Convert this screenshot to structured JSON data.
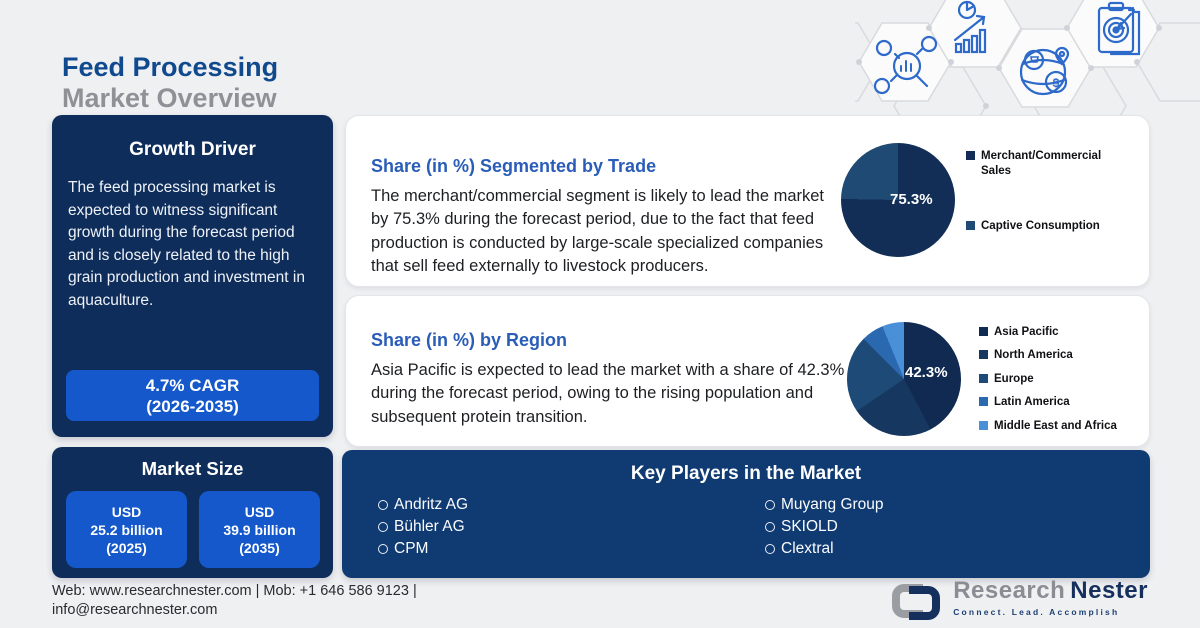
{
  "header": {
    "title_line1": "Feed Processing",
    "title_line2": "Market Overview"
  },
  "growth_driver": {
    "title": "Growth Driver",
    "body": "The feed processing market is expected to witness significant growth during the forecast period and is closely related to the high grain production and investment in aquaculture.",
    "cagr_line1": "4.7% CAGR",
    "cagr_line2": "(2026-2035)"
  },
  "trade_panel": {
    "title": "Share (in %) Segmented by Trade",
    "body": "The merchant/commercial segment is likely to lead the market by 75.3% during the forecast period, due to the fact that feed production is conducted by large-scale specialized companies that sell feed externally to livestock producers."
  },
  "region_panel": {
    "title": "Share (in %) by Region",
    "body": "Asia Pacific is expected to lead the market with a share of 42.3% during the forecast period, owing to the rising population and subsequent protein transition."
  },
  "market_size": {
    "title": "Market Size",
    "value1": {
      "line1": "USD",
      "line2": "25.2 billion",
      "line3": "(2025)"
    },
    "value2": {
      "line1": "USD",
      "line2": "39.9 billion",
      "line3": "(2035)"
    }
  },
  "key_players": {
    "title": "Key Players in the Market",
    "column1": [
      "Andritz AG",
      "Bühler AG",
      "CPM"
    ],
    "column2": [
      "Muyang Group",
      "SKIOLD",
      "Clextral"
    ]
  },
  "footer": {
    "contact_line1": "Web: www.researchnester.com | Mob: +1 646 586 9123 |",
    "contact_line2": "info@researchnester.com",
    "brand_part1": "Research",
    "brand_part2": "Nester",
    "tagline": "Connect. Lead. Accomplish"
  },
  "decor": {
    "dollar_glyph": "$",
    "icon_names": [
      "market-research-icon",
      "growth-chart-icon",
      "global-market-icon",
      "target-plan-icon"
    ]
  },
  "colors": {
    "background": "#eff0f2",
    "navy_card": "#0e2d5a",
    "key_players_card": "#0f3a72",
    "accent_blue": "#1458cc",
    "heading_blue": "#2a5db8",
    "title_navy": "#11498f",
    "title_gray": "#8e9196"
  },
  "chart_data": [
    {
      "type": "pie",
      "title": "Share (in %) Segmented by Trade",
      "labels": [
        "Merchant/Commercial Sales",
        "Captive Consumption"
      ],
      "values": [
        75.3,
        24.7
      ],
      "colors": [
        "#122d56",
        "#1f4a73"
      ],
      "data_label": "75.3%",
      "legend_position": "right"
    },
    {
      "type": "pie",
      "title": "Share (in %) by Region",
      "labels": [
        "Asia Pacific",
        "North America",
        "Europe",
        "Latin America",
        "Middle East and Africa"
      ],
      "values": [
        42.3,
        23.2,
        22.0,
        6.3,
        6.2
      ],
      "colors": [
        "#102a52",
        "#16375f",
        "#1d4a77",
        "#2a69b0",
        "#4a90d9"
      ],
      "data_label": "42.3%",
      "legend_position": "right"
    }
  ]
}
